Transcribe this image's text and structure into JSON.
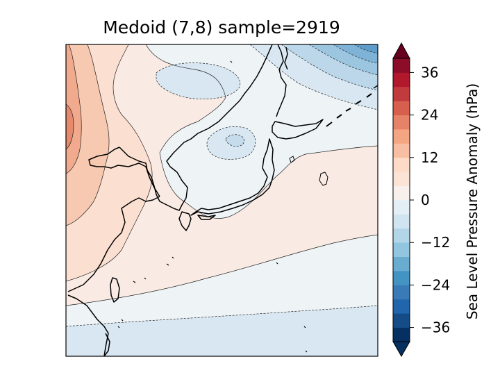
{
  "title": "Medoid (7,8) sample=2919",
  "colorbar": {
    "label": "Sea Level Pressure Anomaly (hPa)",
    "min": -40,
    "max": 40,
    "step": 4,
    "extend": "both",
    "colormap": "RdBu_r",
    "ticks": [
      {
        "value": 36,
        "label": "36"
      },
      {
        "value": 24,
        "label": "24"
      },
      {
        "value": 12,
        "label": "12"
      },
      {
        "value": 0,
        "label": "0"
      },
      {
        "value": -12,
        "label": "−12"
      },
      {
        "value": -24,
        "label": "−24"
      },
      {
        "value": -36,
        "label": "−36"
      }
    ]
  },
  "map": {
    "region": "East Asia / Japan",
    "field": "sea level pressure anomaly",
    "features": [
      "coastlines",
      "filled contours",
      "contour lines"
    ]
  }
}
